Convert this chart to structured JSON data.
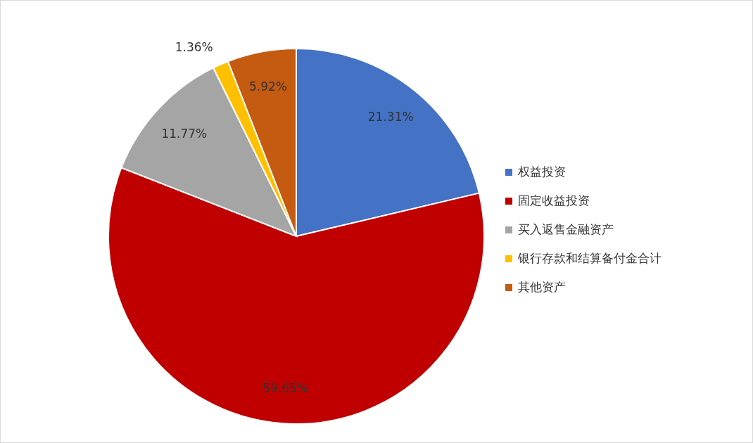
{
  "chart_data": {
    "type": "pie",
    "categories": [
      "权益投资",
      "固定收益投资",
      "买入返售金融资产",
      "银行存款和结算备付金合计",
      "其他资产"
    ],
    "values": [
      21.31,
      59.65,
      11.77,
      1.36,
      5.92
    ],
    "colors": [
      "#4472c4",
      "#c00000",
      "#a5a5a5",
      "#ffc000",
      "#c55a11"
    ],
    "value_labels": [
      "21.31%",
      "59.65%",
      "11.77%",
      "1.36%",
      "5.92%"
    ],
    "legend": "right"
  }
}
